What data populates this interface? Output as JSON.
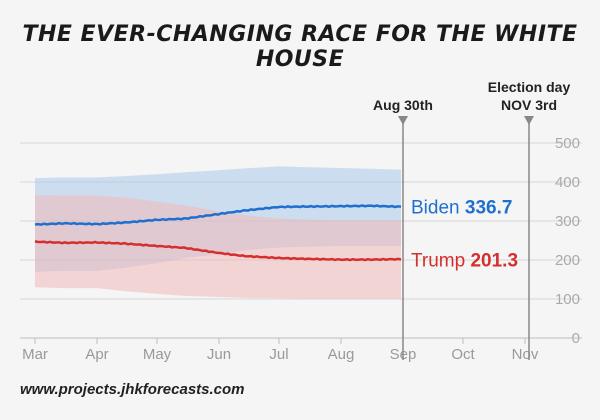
{
  "chart_data": {
    "type": "line",
    "title": "THE EVER-CHANGING RACE FOR THE WHITE HOUSE",
    "xlabel": "",
    "ylabel": "",
    "x_ticks": [
      "Mar",
      "Apr",
      "May",
      "Jun",
      "Jul",
      "Aug",
      "Sep",
      "Oct",
      "Nov"
    ],
    "y_ticks": [
      0,
      100,
      200,
      300,
      400,
      500
    ],
    "ylim": [
      0,
      500
    ],
    "x_unit": "day index from Mar 1 (Mar 1 = 0, Sep 1 = 184, Nov 3 = 247)",
    "xlim": [
      0,
      252
    ],
    "series": [
      {
        "name": "Biden",
        "color": "#1f6fcf",
        "band_color": "#a9c8ea",
        "x": [
          0,
          15,
          31,
          45,
          61,
          75,
          92,
          105,
          122,
          135,
          153,
          168,
          180,
          183
        ],
        "values": [
          291,
          294,
          292,
          296,
          303,
          306,
          318,
          327,
          336,
          337,
          338,
          339,
          337,
          336.7
        ],
        "upper": [
          410,
          412,
          412,
          415,
          420,
          425,
          430,
          435,
          440,
          438,
          436,
          434,
          432,
          432
        ],
        "lower": [
          170,
          172,
          172,
          180,
          192,
          205,
          215,
          225,
          232,
          234,
          236,
          236,
          236,
          236
        ],
        "final_label": "Biden",
        "final_value": "336.7"
      },
      {
        "name": "Trump",
        "color": "#d42f2f",
        "band_color": "#f1b8b8",
        "x": [
          0,
          15,
          31,
          45,
          61,
          75,
          92,
          105,
          122,
          135,
          153,
          168,
          180,
          183
        ],
        "values": [
          247,
          244,
          245,
          242,
          236,
          231,
          218,
          210,
          205,
          203,
          201,
          201,
          202,
          201.3
        ],
        "upper": [
          366,
          365,
          365,
          360,
          350,
          340,
          325,
          315,
          306,
          304,
          302,
          302,
          302,
          302
        ],
        "lower": [
          130,
          128,
          128,
          120,
          113,
          108,
          105,
          103,
          102,
          101,
          101,
          101,
          101,
          101
        ],
        "final_label": "Trump",
        "final_value": "201.3"
      }
    ],
    "annotations": [
      {
        "label_lines": [
          "Aug 30th"
        ],
        "x": 184
      },
      {
        "label_lines": [
          "Election day",
          "NOV 3rd"
        ],
        "x": 247
      }
    ]
  },
  "footer": "www.projects.jhkforecasts.com"
}
